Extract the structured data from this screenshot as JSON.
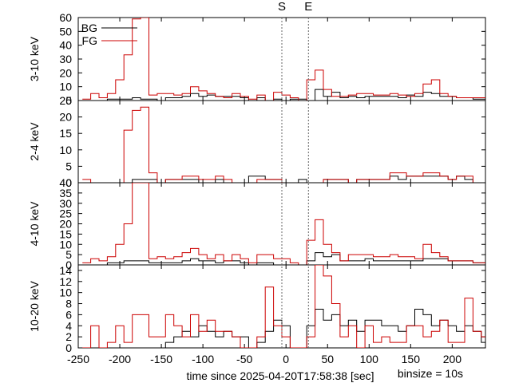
{
  "chart_data": {
    "type": "step-histogram",
    "xlabel": "time since 2025-04-20T17:58:38 [sec]",
    "binsize_label": "binsize = 10s",
    "xlim": [
      -250,
      240
    ],
    "xticks": [
      -250,
      -200,
      -150,
      -100,
      -50,
      0,
      50,
      100,
      150,
      200
    ],
    "markers": [
      {
        "label": "S",
        "x": -5
      },
      {
        "label": "E",
        "x": 27
      }
    ],
    "series_styles": [
      {
        "name": "BG",
        "color": "#000000"
      },
      {
        "name": "FG",
        "color": "#cc0000"
      }
    ],
    "bin_start": -245,
    "bin_width": 10,
    "panels": [
      {
        "ylabel": "3-10 keV",
        "ylim": [
          0,
          60
        ],
        "yticks": [
          0,
          10,
          20,
          30,
          40,
          50,
          60
        ],
        "show_legend": true,
        "series": [
          {
            "name": "BG",
            "values": [
              0,
              0,
              0,
              1,
              1,
              1,
              2,
              1,
              1,
              0,
              2,
              2,
              3,
              5,
              3,
              4,
              3,
              3,
              3,
              2,
              0,
              2,
              0,
              1,
              0,
              1,
              1,
              0,
              8,
              3,
              6,
              2,
              3,
              2,
              3,
              3,
              3,
              3,
              2,
              4,
              3,
              6,
              5,
              3,
              3,
              2,
              2,
              1,
              1
            ]
          },
          {
            "name": "FG",
            "values": [
              1,
              5,
              2,
              5,
              15,
              33,
              59,
              67,
              4,
              5,
              5,
              4,
              5,
              10,
              7,
              5,
              3,
              2,
              5,
              3,
              1,
              4,
              0,
              6,
              4,
              2,
              0,
              15,
              22,
              8,
              3,
              3,
              4,
              5,
              5,
              4,
              4,
              5,
              4,
              3,
              5,
              12,
              15,
              5,
              3,
              2,
              2,
              2,
              2
            ]
          }
        ]
      },
      {
        "ylabel": "2-4 keV",
        "ylim": [
          0,
          25
        ],
        "yticks": [
          0,
          5,
          10,
          15,
          20,
          25
        ],
        "series": [
          {
            "name": "BG",
            "values": [
              0,
              0,
              0,
              0,
              0,
              0,
              1,
              1,
              1,
              0,
              1,
              1,
              1,
              1,
              0,
              0,
              1,
              0,
              0,
              0,
              2,
              2,
              1,
              1,
              0,
              0,
              1,
              0,
              0,
              1,
              1,
              1,
              0,
              1,
              1,
              1,
              1,
              2,
              1,
              2,
              2,
              2,
              2,
              2,
              1,
              2,
              1,
              0,
              0
            ]
          },
          {
            "name": "FG",
            "values": [
              1,
              0,
              0,
              0,
              0,
              16,
              22,
              23,
              3,
              0,
              1,
              1,
              2,
              2,
              1,
              1,
              2,
              1,
              0,
              0,
              0,
              1,
              1,
              1,
              0,
              0,
              0,
              0,
              0,
              1,
              1,
              1,
              0,
              1,
              1,
              1,
              1,
              3,
              3,
              2,
              2,
              3,
              3,
              2,
              1,
              2,
              2,
              0,
              0
            ]
          }
        ]
      },
      {
        "ylabel": "4-10 keV",
        "ylim": [
          0,
          40
        ],
        "yticks": [
          0,
          5,
          10,
          15,
          20,
          25,
          30,
          35,
          40
        ],
        "series": [
          {
            "name": "BG",
            "values": [
              0,
              0,
              0,
              1,
              1,
              2,
              2,
              2,
              1,
              1,
              1,
              1,
              2,
              3,
              2,
              2,
              1,
              2,
              2,
              1,
              0,
              1,
              1,
              0,
              0,
              0,
              0,
              2,
              6,
              4,
              5,
              2,
              2,
              2,
              3,
              2,
              2,
              2,
              2,
              2,
              2,
              3,
              3,
              3,
              2,
              2,
              2,
              1,
              1
            ]
          },
          {
            "name": "FG",
            "values": [
              1,
              3,
              2,
              4,
              10,
              20,
              42,
              43,
              3,
              4,
              3,
              4,
              6,
              8,
              5,
              3,
              5,
              2,
              5,
              3,
              1,
              5,
              5,
              3,
              3,
              1,
              0,
              12,
              22,
              10,
              6,
              2,
              5,
              5,
              5,
              4,
              4,
              5,
              4,
              4,
              3,
              10,
              6,
              4,
              2,
              2,
              2,
              1,
              1
            ]
          }
        ]
      },
      {
        "ylabel": "10-20 keV",
        "ylim": [
          0,
          15
        ],
        "yticks": [
          0,
          2,
          4,
          6,
          8,
          10,
          12,
          14
        ],
        "series": [
          {
            "name": "BG",
            "values": [
              0,
              0,
              0,
              0,
              0,
              0,
              0,
              0,
              0,
              0,
              1,
              2,
              3,
              2,
              4,
              3,
              2,
              3,
              2,
              2,
              0,
              1,
              3,
              5,
              4,
              0,
              0,
              4,
              7,
              5,
              6,
              4,
              5,
              3,
              5,
              5,
              4,
              4,
              3,
              4,
              7,
              6,
              4,
              5,
              4,
              3,
              4,
              3,
              1
            ]
          },
          {
            "name": "FG",
            "values": [
              0,
              4,
              0,
              1,
              4,
              1,
              6,
              6,
              2,
              2,
              6,
              4,
              2,
              6,
              3,
              5,
              3,
              3,
              2,
              0,
              0,
              2,
              11,
              4,
              2,
              0,
              0,
              2,
              15,
              13,
              8,
              2,
              4,
              0,
              4,
              1,
              2,
              1,
              1,
              4,
              4,
              2,
              3,
              5,
              1,
              1,
              9,
              3,
              2
            ]
          }
        ]
      }
    ]
  }
}
